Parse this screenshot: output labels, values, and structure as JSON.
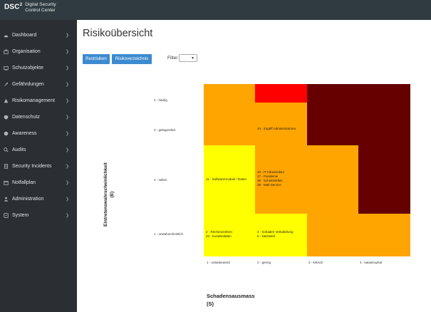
{
  "app": {
    "logo_mark": "DSC",
    "logo_sup": "2",
    "logo_line1": "Digital Security",
    "logo_line2": "Control Center"
  },
  "sidebar": {
    "items": [
      {
        "label": "Dashboard",
        "icon": "dashboard-icon"
      },
      {
        "label": "Organisation",
        "icon": "organisation-icon"
      },
      {
        "label": "Schutzobjekte",
        "icon": "schutzobjekte-icon"
      },
      {
        "label": "Gefährdungen",
        "icon": "gefaehrdungen-icon"
      },
      {
        "label": "Risikomanagement",
        "icon": "risikomanagement-icon"
      },
      {
        "label": "Datenschutz",
        "icon": "datenschutz-icon"
      },
      {
        "label": "Awareness",
        "icon": "awareness-icon"
      },
      {
        "label": "Audits",
        "icon": "audits-icon"
      },
      {
        "label": "Security Incidents",
        "icon": "security-incidents-icon"
      },
      {
        "label": "Notfallplan",
        "icon": "notfallplan-icon"
      },
      {
        "label": "Administration",
        "icon": "administration-icon"
      },
      {
        "label": "System",
        "icon": "system-icon"
      }
    ]
  },
  "main": {
    "title": "Risikoübersicht",
    "btn_restrisiken": "Restrisiken",
    "btn_risikoverzeichnis": "Risikoverzeichnis",
    "filter_label": "Filter",
    "filter_value": ""
  },
  "matrix": {
    "y_title_line1": "Eintretenswahrscheinlichkeit",
    "y_title_line2": "(E)",
    "x_title_line1": "Schadensausmass",
    "x_title_line2": "(S)",
    "rows": [
      "4 - häufig",
      "3 - gelegentlich",
      "2 - selten",
      "1 - unwahrscheinlich"
    ],
    "cols": [
      "1 - unbedeutend",
      "2 - gering",
      "3 - kritisch",
      "4 - katastrophal"
    ],
    "cell_texts": {
      "r3c2": [
        "34 - Zugriff Administratoren"
      ],
      "r2c1": [
        "11 - Softwaremodule / Daten"
      ],
      "r2c2": [
        "10 - IT Infrastruktur",
        "17 - Pandemie",
        "38 - Schnittstellen",
        "38 - Mail-Service"
      ],
      "r1c1": [
        "2 - Rechenzentren",
        "33 - Kundendaten"
      ],
      "r1c2": [
        "4 - Schaden Verkabelung",
        "6 - Netzwerk"
      ]
    },
    "colors": {
      "yellow": "#ffff00",
      "orange": "#ffa500",
      "red": "#ff0000",
      "darkred": "#660000"
    }
  }
}
